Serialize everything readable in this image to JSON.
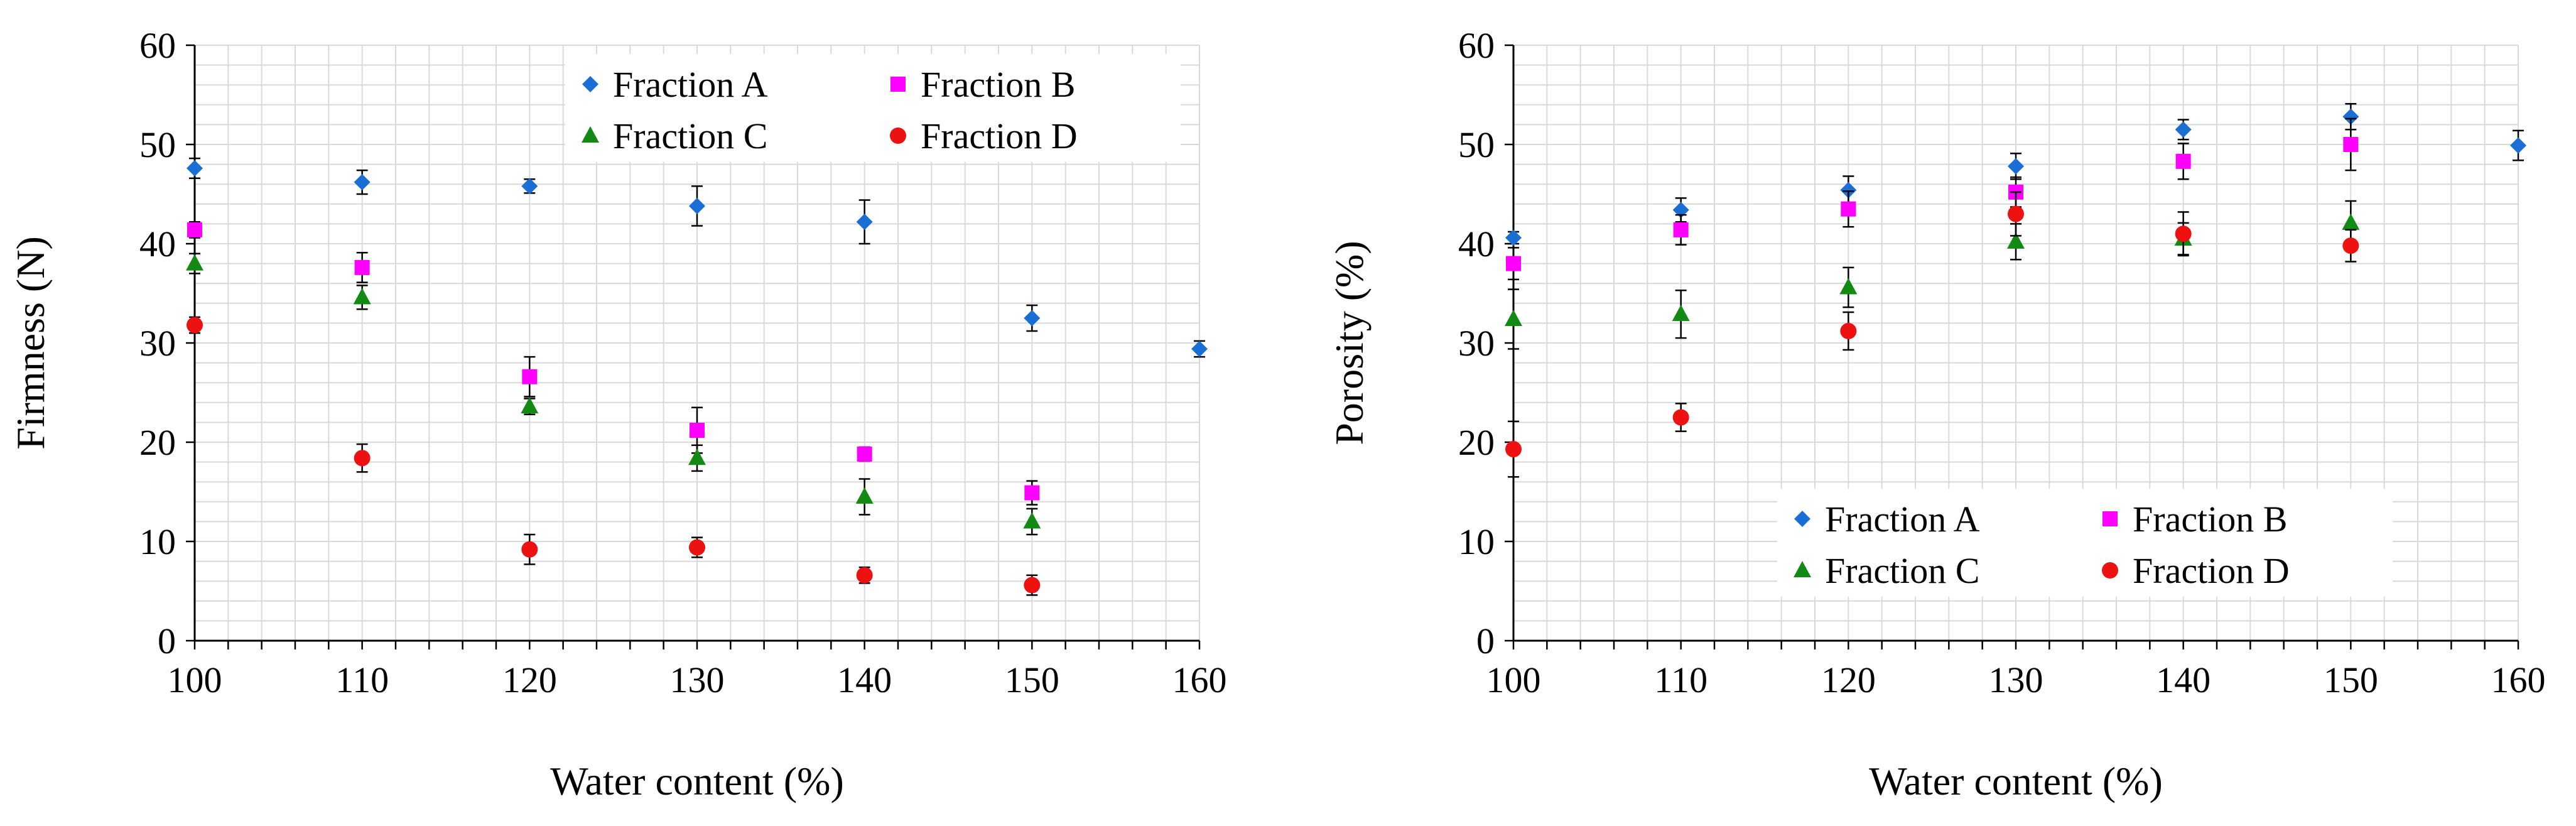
{
  "colors": {
    "fraction_a": "#1a6fd4",
    "fraction_b": "#ff00ff",
    "fraction_c": "#138a13",
    "fraction_d": "#ee1111",
    "grid": "#d9d9d9",
    "axis": "#000000"
  },
  "chart_data": [
    {
      "type": "scatter",
      "ylabel": "Firmness (N)",
      "xlabel": "Water content (%)",
      "xlim": [
        100,
        160
      ],
      "ylim": [
        0,
        60
      ],
      "x_major_ticks": [
        100,
        110,
        120,
        130,
        140,
        150,
        160
      ],
      "y_major_ticks": [
        0,
        10,
        20,
        30,
        40,
        50,
        60
      ],
      "grid": true,
      "legend": "top-right",
      "series": [
        {
          "name": "Fraction A",
          "marker": "diamond",
          "color_key": "fraction_a",
          "x": [
            100,
            110,
            120,
            130,
            140,
            150,
            160
          ],
          "y": [
            47.6,
            46.2,
            45.8,
            43.8,
            42.2,
            32.5,
            29.4
          ],
          "err": [
            1.0,
            1.2,
            0.7,
            2.0,
            2.2,
            1.3,
            0.8
          ]
        },
        {
          "name": "Fraction B",
          "marker": "square",
          "color_key": "fraction_b",
          "x": [
            100,
            110,
            120,
            130,
            140,
            150
          ],
          "y": [
            41.4,
            37.6,
            26.6,
            21.2,
            18.8,
            14.9
          ],
          "err": [
            0.8,
            1.5,
            2.0,
            2.3,
            0.7,
            1.2
          ]
        },
        {
          "name": "Fraction C",
          "marker": "triangle",
          "color_key": "fraction_c",
          "x": [
            100,
            110,
            120,
            130,
            140,
            150
          ],
          "y": [
            38.0,
            34.6,
            23.6,
            18.4,
            14.5,
            12.0
          ],
          "err": [
            1.0,
            1.2,
            0.8,
            1.3,
            1.8,
            1.3
          ]
        },
        {
          "name": "Fraction D",
          "marker": "circle",
          "color_key": "fraction_d",
          "x": [
            100,
            110,
            120,
            130,
            140,
            150
          ],
          "y": [
            31.8,
            18.4,
            9.2,
            9.4,
            6.6,
            5.6
          ],
          "err": [
            0.8,
            1.4,
            1.5,
            1.0,
            0.8,
            1.0
          ]
        }
      ]
    },
    {
      "type": "scatter",
      "ylabel": "Porosity (%)",
      "xlabel": "Water content (%)",
      "xlim": [
        100,
        160
      ],
      "ylim": [
        0,
        60
      ],
      "x_major_ticks": [
        100,
        110,
        120,
        130,
        140,
        150,
        160
      ],
      "y_major_ticks": [
        0,
        10,
        20,
        30,
        40,
        50,
        60
      ],
      "grid": true,
      "legend": "bottom-right",
      "series": [
        {
          "name": "Fraction A",
          "marker": "diamond",
          "color_key": "fraction_a",
          "x": [
            100,
            110,
            120,
            130,
            140,
            150,
            160
          ],
          "y": [
            40.6,
            43.4,
            45.4,
            47.8,
            51.5,
            52.8,
            49.9
          ],
          "err": [
            0.6,
            1.2,
            1.4,
            1.3,
            1.0,
            1.3,
            1.5
          ]
        },
        {
          "name": "Fraction B",
          "marker": "square",
          "color_key": "fraction_b",
          "x": [
            100,
            110,
            120,
            130,
            140,
            150
          ],
          "y": [
            38.0,
            41.4,
            43.5,
            45.2,
            48.3,
            50.0
          ],
          "err": [
            1.6,
            1.5,
            1.8,
            1.5,
            1.8,
            2.6
          ]
        },
        {
          "name": "Fraction C",
          "marker": "triangle",
          "color_key": "fraction_c",
          "x": [
            100,
            110,
            120,
            130,
            140,
            150
          ],
          "y": [
            32.4,
            32.9,
            35.6,
            40.2,
            40.5,
            42.1
          ],
          "err": [
            3.0,
            2.4,
            2.0,
            1.8,
            1.6,
            2.2
          ]
        },
        {
          "name": "Fraction D",
          "marker": "circle",
          "color_key": "fraction_d",
          "x": [
            100,
            110,
            120,
            130,
            140,
            150
          ],
          "y": [
            19.3,
            22.5,
            31.2,
            43.0,
            41.0,
            39.8
          ],
          "err": [
            2.8,
            1.4,
            1.9,
            2.2,
            2.2,
            1.6
          ]
        }
      ]
    }
  ]
}
